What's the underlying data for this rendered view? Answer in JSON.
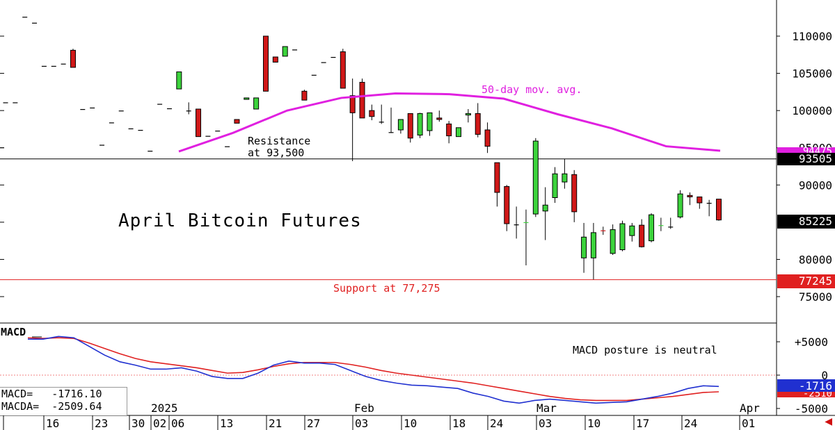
{
  "chart_data": [
    {
      "type": "candlestick",
      "title": "April Bitcoin Futures",
      "y_ticks": [
        "110000",
        "105000",
        "100000",
        "95000",
        "90000",
        "80000",
        "75000"
      ],
      "ylim": [
        72000,
        114000
      ],
      "x_ticks": [
        "16",
        "23",
        "30",
        "02",
        "06",
        "13",
        "21",
        "27",
        "03",
        "10",
        "18",
        "24",
        "03",
        "10",
        "17",
        "24",
        "01"
      ],
      "x_month_labels": [
        "2025",
        "Feb",
        "Mar",
        "Apr"
      ],
      "ohlc": [
        [
          101100,
          101100,
          101100,
          101100
        ],
        [
          101100,
          101100,
          101100,
          101100
        ],
        [
          112600,
          112600,
          112600,
          112600
        ],
        [
          111800,
          111800,
          111800,
          111800
        ],
        [
          106000,
          106000,
          106000,
          106000
        ],
        [
          106000,
          106000,
          106000,
          106000
        ],
        [
          106300,
          106300,
          106300,
          106300
        ],
        [
          108100,
          108300,
          105800,
          105800
        ],
        [
          100200,
          100200,
          100200,
          100200
        ],
        [
          100400,
          100400,
          100400,
          100400
        ],
        [
          95400,
          95400,
          95400,
          95400
        ],
        [
          98400,
          98400,
          98400,
          98400
        ],
        [
          100000,
          100000,
          100000,
          100000
        ],
        [
          97600,
          97600,
          97600,
          97600
        ],
        [
          97400,
          97400,
          97400,
          97400
        ],
        [
          94600,
          94600,
          94600,
          94600
        ],
        [
          100900,
          100900,
          100900,
          100900
        ],
        [
          100300,
          100300,
          100300,
          100300
        ],
        [
          102900,
          105200,
          102900,
          105200
        ],
        [
          100000,
          101100,
          99500,
          100000
        ],
        [
          100200,
          100200,
          96500,
          96500
        ],
        [
          96600,
          96600,
          96600,
          96600
        ],
        [
          97300,
          97300,
          97300,
          97300
        ],
        [
          95200,
          95200,
          95200,
          95200
        ],
        [
          98800,
          98800,
          98300,
          98300
        ],
        [
          101500,
          101700,
          101500,
          101700
        ],
        [
          100200,
          101700,
          100200,
          101700
        ],
        [
          110000,
          110000,
          102600,
          102600
        ],
        [
          107200,
          107200,
          106500,
          106500
        ],
        [
          107300,
          108600,
          107300,
          108600
        ],
        [
          108200,
          108200,
          108200,
          108200
        ],
        [
          102600,
          102800,
          101400,
          101400
        ],
        [
          104800,
          104800,
          104800,
          104800
        ],
        [
          106500,
          106500,
          106500,
          106500
        ],
        [
          107200,
          107200,
          107200,
          107200
        ],
        [
          107900,
          108300,
          103000,
          103000
        ],
        [
          102000,
          104300,
          93200,
          99700
        ],
        [
          103800,
          104300,
          99000,
          99000
        ],
        [
          100000,
          100800,
          98700,
          99200
        ],
        [
          98500,
          100800,
          98200,
          98500
        ],
        [
          97100,
          100400,
          97000,
          97100
        ],
        [
          97400,
          98800,
          96900,
          98800
        ],
        [
          99600,
          99600,
          95700,
          96300
        ],
        [
          96700,
          99700,
          96300,
          99600
        ],
        [
          97300,
          99600,
          96600,
          99700
        ],
        [
          99000,
          100000,
          98500,
          98800
        ],
        [
          98200,
          98600,
          95600,
          96600
        ],
        [
          96500,
          97700,
          96500,
          97700
        ],
        [
          99400,
          100200,
          98400,
          99600
        ],
        [
          99600,
          101000,
          96400,
          96800
        ],
        [
          97400,
          98400,
          94300,
          95200
        ],
        [
          93000,
          93000,
          87100,
          89000
        ],
        [
          89800,
          90000,
          83800,
          84800
        ],
        [
          84700,
          87100,
          82800,
          84700
        ],
        [
          84900,
          86700,
          79200,
          85000
        ],
        [
          86100,
          96300,
          85700,
          95900
        ],
        [
          86500,
          89700,
          82600,
          87300
        ],
        [
          88300,
          92400,
          87600,
          91500
        ],
        [
          90400,
          93500,
          89500,
          91500
        ],
        [
          91400,
          92000,
          85000,
          86400
        ],
        [
          80200,
          84900,
          78200,
          83000
        ],
        [
          80200,
          84900,
          77300,
          83600
        ],
        [
          83900,
          84400,
          83300,
          83800
        ],
        [
          80800,
          84700,
          80600,
          84000
        ],
        [
          81300,
          85200,
          81100,
          84800
        ],
        [
          83200,
          84900,
          82400,
          84500
        ],
        [
          84600,
          85400,
          81600,
          81700
        ],
        [
          82500,
          86200,
          82300,
          86000
        ],
        [
          84500,
          85600,
          83800,
          84600
        ],
        [
          84400,
          85600,
          84100,
          84400
        ],
        [
          85700,
          89300,
          85500,
          88800
        ],
        [
          88600,
          89000,
          87300,
          88400
        ],
        [
          88400,
          88400,
          86800,
          87600
        ],
        [
          87600,
          88000,
          85800,
          87600
        ],
        [
          88100,
          88100,
          85200,
          85300
        ]
      ],
      "moving_average": {
        "label": "50-day mov. avg.",
        "points": [
          [
            94500,
            94500
          ],
          [
            97000,
            97000
          ],
          [
            100000,
            100000
          ],
          [
            101700,
            101700
          ],
          [
            102300,
            102300
          ],
          [
            102200,
            102200
          ],
          [
            101600,
            101600
          ],
          [
            99500,
            99500
          ],
          [
            97600,
            97600
          ],
          [
            95200,
            95200
          ],
          [
            94600,
            94600
          ]
        ],
        "value_tag": "94475",
        "color": "#e020e0"
      },
      "annotations": {
        "resistance_line1": "Resistance",
        "resistance_line2": "at 93,500",
        "support": "Support at 77,275",
        "label": "April Bitcoin Futures"
      },
      "levels": {
        "resistance": 93500,
        "resistance_tag": "93505",
        "support": 77275,
        "support_tag": "77245",
        "last_tag": "85225"
      }
    },
    {
      "type": "line",
      "title": "MACD",
      "y_ticks": [
        "+5000",
        "0",
        "-5000"
      ],
      "ylim": [
        -6500,
        7000
      ],
      "note": "MACD posture is neutral",
      "series": [
        {
          "name": "MACD",
          "color": "#2030d0",
          "values": [
            5400,
            5400,
            5800,
            5600,
            4300,
            3000,
            2000,
            1500,
            900,
            900,
            1100,
            600,
            -200,
            -500,
            -500,
            300,
            1500,
            2100,
            1800,
            1800,
            1600,
            700,
            -200,
            -800,
            -1200,
            -1500,
            -1600,
            -1800,
            -2000,
            -2700,
            -3200,
            -3900,
            -4200,
            -3800,
            -3600,
            -3800,
            -4000,
            -4200,
            -4100,
            -4000,
            -3600,
            -3200,
            -2700,
            -2000,
            -1600,
            -1700
          ]
        },
        {
          "name": "MACDA",
          "color": "#e02020",
          "values": [
            5600,
            5500,
            5600,
            5500,
            4800,
            4000,
            3200,
            2500,
            2000,
            1700,
            1400,
            1100,
            700,
            300,
            400,
            800,
            1300,
            1700,
            1900,
            1900,
            1900,
            1600,
            1200,
            700,
            300,
            0,
            -300,
            -600,
            -900,
            -1200,
            -1600,
            -2000,
            -2400,
            -2800,
            -3200,
            -3500,
            -3700,
            -3800,
            -3800,
            -3800,
            -3600,
            -3400,
            -3200,
            -2900,
            -2600,
            -2500
          ]
        }
      ],
      "readout": {
        "macd_label": "MACD=",
        "macd_value": "-1716.10",
        "macda_label": "MACDA=",
        "macda_value": "-2509.64"
      },
      "tags": {
        "macd_tag": "-1716",
        "macda_tag": "-2510"
      }
    }
  ]
}
